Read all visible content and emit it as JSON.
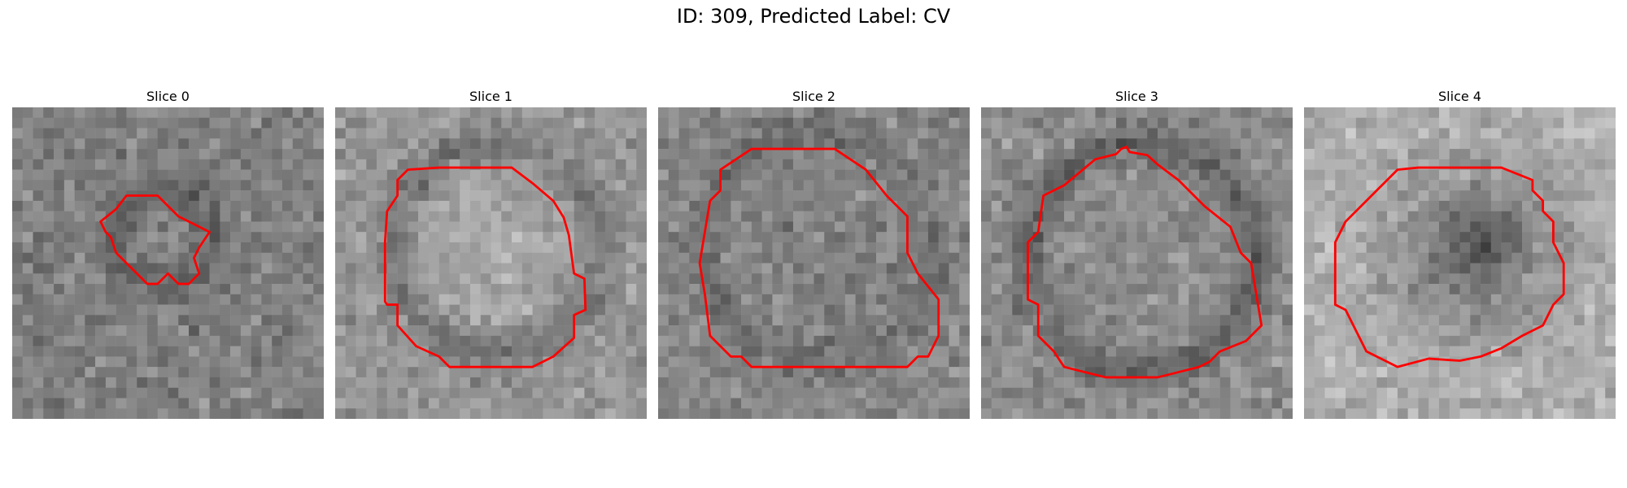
{
  "figure": {
    "title": "ID: 309, Predicted Label: CV"
  },
  "colors": {
    "contour": "#ff0000",
    "background": "#ffffff"
  },
  "panels": [
    {
      "title": "Slice 0",
      "image": "grayscale-noise-slice-with-small-irregular-red-contour"
    },
    {
      "title": "Slice 1",
      "image": "grayscale-noise-slice-with-large-octagonal-red-contour"
    },
    {
      "title": "Slice 2",
      "image": "grayscale-noise-slice-with-large-red-contour"
    },
    {
      "title": "Slice 3",
      "image": "grayscale-noise-slice-with-large-red-contour"
    },
    {
      "title": "Slice 4",
      "image": "grayscale-noise-slice-with-dark-blob-and-red-contour"
    }
  ]
}
